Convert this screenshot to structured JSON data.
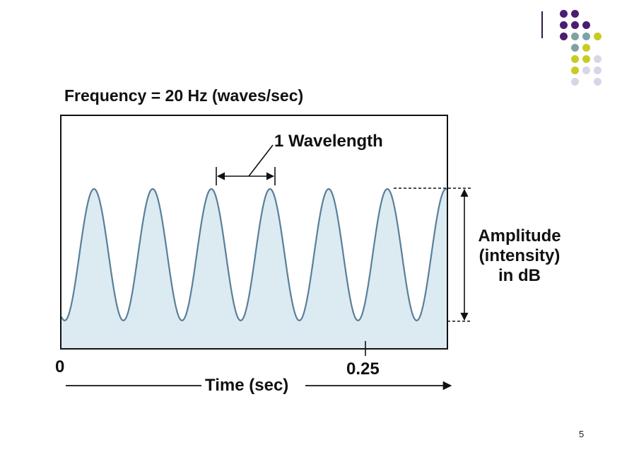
{
  "slide": {
    "title": "Frequency = 20 Hz (waves/sec)",
    "page_number": "5"
  },
  "diagram": {
    "wavelength_label": "1 Wavelength",
    "amplitude_label": [
      "Amplitude",
      "(intensity)",
      "in dB"
    ],
    "x_tick_zero": "0",
    "x_tick_quarter": "0.25",
    "x_axis_label": "Time (sec)"
  },
  "chart_data": {
    "type": "line",
    "title": "Frequency = 20 Hz (waves/sec)",
    "xlabel": "Time (sec)",
    "ylabel": "Amplitude (intensity) in dB",
    "x_ticks": [
      "0",
      "0.25"
    ],
    "frequency_hz": 20,
    "series": [
      {
        "name": "sine wave",
        "cycles_shown": 6.7
      }
    ]
  },
  "colors": {
    "wave_stroke": "#5b7f9a",
    "wave_fill": "#dcebf1",
    "deco_purple": "#4b1d6e",
    "deco_teal": "#7fa3a3",
    "deco_yellow": "#c8cc22",
    "deco_lavender": "#d8d6e6"
  }
}
